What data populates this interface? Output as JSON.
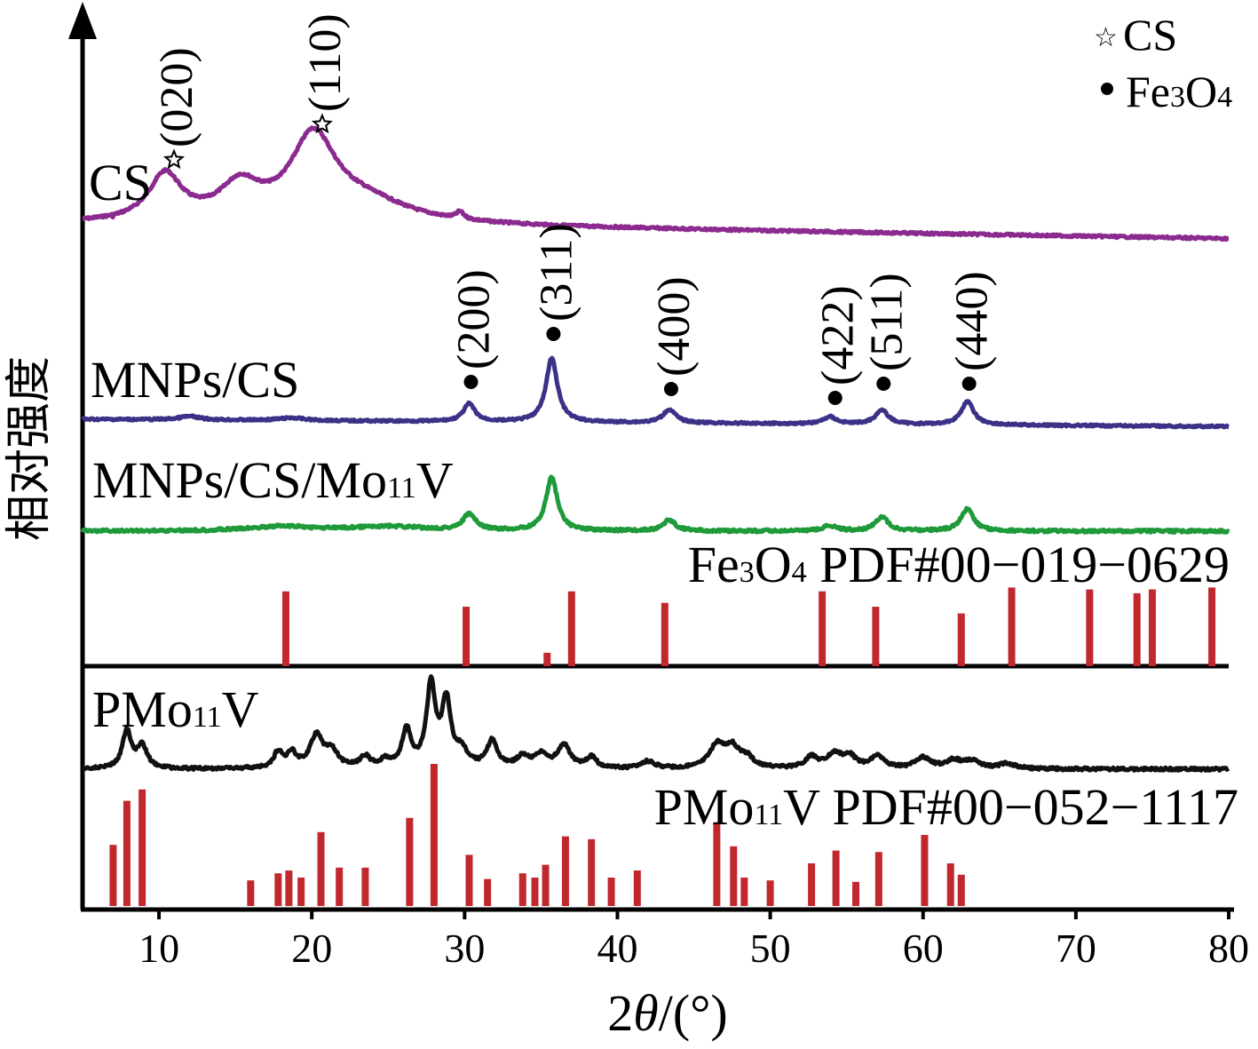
{
  "chart_data": {
    "type": "line",
    "title": "",
    "xlabel_prefix": "2",
    "xlabel_theta": "θ",
    "xlabel_suffix": "/(°)",
    "ylabel": "相对强度",
    "xlim": [
      5,
      80
    ],
    "xticks": [
      10,
      20,
      30,
      40,
      50,
      60,
      70,
      80
    ],
    "grid": false,
    "legend": [
      {
        "name": "CS",
        "marker": "star-icon"
      },
      {
        "name_parts": [
          "Fe",
          "3",
          "O",
          "4"
        ],
        "marker": "circle-icon"
      }
    ],
    "series": [
      {
        "name": "CS",
        "color": "#8b2a8f",
        "peaks": [
          {
            "x": 10.4,
            "hkl": "(020)",
            "marker": "star"
          },
          {
            "x": 20.1,
            "hkl": "(110)",
            "marker": "star"
          }
        ]
      },
      {
        "name": "MNPs/CS",
        "color": "#3b3288",
        "peaks": [
          {
            "x": 30.3,
            "hkl": "(200)",
            "marker": "dot"
          },
          {
            "x": 35.7,
            "hkl": "(311)",
            "marker": "dot"
          },
          {
            "x": 43.4,
            "hkl": "(400)",
            "marker": "dot"
          },
          {
            "x": 53.9,
            "hkl": "(422)",
            "marker": "dot"
          },
          {
            "x": 57.3,
            "hkl": "(511)",
            "marker": "dot"
          },
          {
            "x": 62.9,
            "hkl": "(440)",
            "marker": "dot"
          }
        ]
      },
      {
        "name_parts": [
          "MNPs/CS/Mo",
          "11",
          "V"
        ],
        "color": "#1f9a3a"
      },
      {
        "name_parts": [
          "PMo",
          "11",
          "V"
        ],
        "color": "#111111"
      }
    ],
    "reference_patterns": [
      {
        "label_parts": [
          "Fe",
          "3",
          "O",
          "4",
          " PDF#00−019−0629"
        ],
        "color": "#c0282d",
        "sticks": [
          {
            "x": 18.3,
            "h": 0.78
          },
          {
            "x": 30.1,
            "h": 0.62
          },
          {
            "x": 35.4,
            "h": 0.14
          },
          {
            "x": 37.0,
            "h": 0.78
          },
          {
            "x": 43.1,
            "h": 0.66
          },
          {
            "x": 53.4,
            "h": 0.78
          },
          {
            "x": 56.9,
            "h": 0.62
          },
          {
            "x": 62.5,
            "h": 0.55
          },
          {
            "x": 65.8,
            "h": 0.82
          },
          {
            "x": 70.9,
            "h": 0.8
          },
          {
            "x": 74.0,
            "h": 0.76
          },
          {
            "x": 75.0,
            "h": 0.8
          },
          {
            "x": 78.9,
            "h": 0.82
          }
        ]
      },
      {
        "label_parts": [
          "PMo",
          "11",
          "V PDF#00−052−1117"
        ],
        "color": "#c0282d",
        "sticks": [
          {
            "x": 7.0,
            "h": 0.43
          },
          {
            "x": 7.9,
            "h": 0.74
          },
          {
            "x": 8.9,
            "h": 0.82
          },
          {
            "x": 16.0,
            "h": 0.18
          },
          {
            "x": 17.8,
            "h": 0.23
          },
          {
            "x": 18.5,
            "h": 0.25
          },
          {
            "x": 19.3,
            "h": 0.2
          },
          {
            "x": 20.6,
            "h": 0.52
          },
          {
            "x": 21.8,
            "h": 0.27
          },
          {
            "x": 23.5,
            "h": 0.27
          },
          {
            "x": 26.4,
            "h": 0.62
          },
          {
            "x": 28.0,
            "h": 1.0
          },
          {
            "x": 30.3,
            "h": 0.36
          },
          {
            "x": 31.5,
            "h": 0.19
          },
          {
            "x": 33.8,
            "h": 0.23
          },
          {
            "x": 34.6,
            "h": 0.2
          },
          {
            "x": 35.3,
            "h": 0.29
          },
          {
            "x": 36.6,
            "h": 0.49
          },
          {
            "x": 38.3,
            "h": 0.47
          },
          {
            "x": 39.6,
            "h": 0.2
          },
          {
            "x": 41.3,
            "h": 0.25
          },
          {
            "x": 46.5,
            "h": 0.59
          },
          {
            "x": 47.6,
            "h": 0.42
          },
          {
            "x": 48.3,
            "h": 0.2
          },
          {
            "x": 50.0,
            "h": 0.18
          },
          {
            "x": 52.7,
            "h": 0.3
          },
          {
            "x": 54.3,
            "h": 0.39
          },
          {
            "x": 55.6,
            "h": 0.17
          },
          {
            "x": 57.1,
            "h": 0.38
          },
          {
            "x": 60.1,
            "h": 0.5
          },
          {
            "x": 61.8,
            "h": 0.3
          },
          {
            "x": 62.5,
            "h": 0.22
          }
        ]
      }
    ]
  }
}
